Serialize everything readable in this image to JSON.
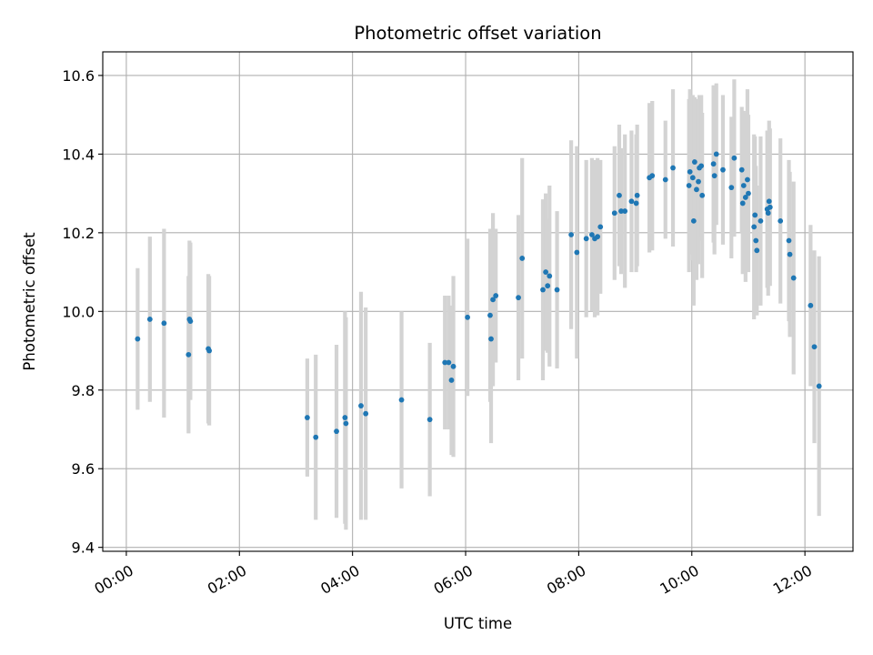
{
  "chart_data": {
    "type": "scatter",
    "title": "Photometric offset variation",
    "xlabel": "UTC time",
    "ylabel": "Photometric offset",
    "x_format": "HH:MM",
    "xlim": [
      "-00:25",
      "12:51"
    ],
    "ylim": [
      9.39,
      10.66
    ],
    "x_ticks": [
      "00:00",
      "02:00",
      "04:00",
      "06:00",
      "08:00",
      "10:00",
      "12:00"
    ],
    "y_ticks": [
      9.4,
      9.6,
      9.8,
      10.0,
      10.2,
      10.4,
      10.6
    ],
    "y_tick_labels": [
      "9.4",
      "9.6",
      "9.8",
      "10.0",
      "10.2",
      "10.4",
      "10.6"
    ],
    "grid": true,
    "legend": "none",
    "colors": {
      "marker": "#1f77b4",
      "error_bar": "#d3d3d3",
      "grid": "#b0b0b0"
    },
    "series": [
      {
        "marker": "dot",
        "points": [
          {
            "x": "00:12",
            "y": 9.93,
            "yerr": 0.18
          },
          {
            "x": "00:25",
            "y": 9.98,
            "yerr": 0.21
          },
          {
            "x": "00:40",
            "y": 9.97,
            "yerr": 0.24
          },
          {
            "x": "01:06",
            "y": 9.89,
            "yerr": 0.2
          },
          {
            "x": "01:07",
            "y": 9.98,
            "yerr": 0.2
          },
          {
            "x": "01:08",
            "y": 9.975,
            "yerr": 0.2
          },
          {
            "x": "01:27",
            "y": 9.905,
            "yerr": 0.19
          },
          {
            "x": "01:28",
            "y": 9.9,
            "yerr": 0.19
          },
          {
            "x": "03:12",
            "y": 9.73,
            "yerr": 0.15
          },
          {
            "x": "03:21",
            "y": 9.68,
            "yerr": 0.21
          },
          {
            "x": "03:43",
            "y": 9.695,
            "yerr": 0.22
          },
          {
            "x": "03:52",
            "y": 9.73,
            "yerr": 0.27
          },
          {
            "x": "03:53",
            "y": 9.715,
            "yerr": 0.27
          },
          {
            "x": "04:09",
            "y": 9.76,
            "yerr": 0.29
          },
          {
            "x": "04:14",
            "y": 9.74,
            "yerr": 0.27
          },
          {
            "x": "04:52",
            "y": 9.775,
            "yerr": 0.225
          },
          {
            "x": "05:22",
            "y": 9.725,
            "yerr": 0.195
          },
          {
            "x": "05:38",
            "y": 9.87,
            "yerr": 0.17
          },
          {
            "x": "05:42",
            "y": 9.87,
            "yerr": 0.17
          },
          {
            "x": "05:45",
            "y": 9.825,
            "yerr": 0.19
          },
          {
            "x": "05:47",
            "y": 9.86,
            "yerr": 0.23
          },
          {
            "x": "06:02",
            "y": 9.985,
            "yerr": 0.2
          },
          {
            "x": "06:26",
            "y": 9.99,
            "yerr": 0.22
          },
          {
            "x": "06:27",
            "y": 9.93,
            "yerr": 0.265
          },
          {
            "x": "06:29",
            "y": 10.03,
            "yerr": 0.22
          },
          {
            "x": "06:32",
            "y": 10.04,
            "yerr": 0.17
          },
          {
            "x": "06:56",
            "y": 10.035,
            "yerr": 0.21
          },
          {
            "x": "07:00",
            "y": 10.135,
            "yerr": 0.255
          },
          {
            "x": "07:22",
            "y": 10.055,
            "yerr": 0.23
          },
          {
            "x": "07:25",
            "y": 10.1,
            "yerr": 0.2
          },
          {
            "x": "07:27",
            "y": 10.065,
            "yerr": 0.17
          },
          {
            "x": "07:29",
            "y": 10.09,
            "yerr": 0.23
          },
          {
            "x": "07:37",
            "y": 10.055,
            "yerr": 0.2
          },
          {
            "x": "07:52",
            "y": 10.195,
            "yerr": 0.24
          },
          {
            "x": "07:58",
            "y": 10.15,
            "yerr": 0.27
          },
          {
            "x": "08:08",
            "y": 10.185,
            "yerr": 0.2
          },
          {
            "x": "08:14",
            "y": 10.195,
            "yerr": 0.195
          },
          {
            "x": "08:17",
            "y": 10.185,
            "yerr": 0.2
          },
          {
            "x": "08:20",
            "y": 10.19,
            "yerr": 0.2
          },
          {
            "x": "08:23",
            "y": 10.215,
            "yerr": 0.17
          },
          {
            "x": "08:38",
            "y": 10.25,
            "yerr": 0.17
          },
          {
            "x": "08:43",
            "y": 10.295,
            "yerr": 0.18
          },
          {
            "x": "08:45",
            "y": 10.255,
            "yerr": 0.16
          },
          {
            "x": "08:49",
            "y": 10.255,
            "yerr": 0.195
          },
          {
            "x": "08:56",
            "y": 10.28,
            "yerr": 0.18
          },
          {
            "x": "09:01",
            "y": 10.275,
            "yerr": 0.175
          },
          {
            "x": "09:02",
            "y": 10.295,
            "yerr": 0.18
          },
          {
            "x": "09:15",
            "y": 10.34,
            "yerr": 0.19
          },
          {
            "x": "09:18",
            "y": 10.345,
            "yerr": 0.19
          },
          {
            "x": "09:32",
            "y": 10.335,
            "yerr": 0.15
          },
          {
            "x": "09:40",
            "y": 10.365,
            "yerr": 0.2
          },
          {
            "x": "09:57",
            "y": 10.32,
            "yerr": 0.22
          },
          {
            "x": "09:58",
            "y": 10.355,
            "yerr": 0.21
          },
          {
            "x": "10:01",
            "y": 10.34,
            "yerr": 0.21
          },
          {
            "x": "10:02",
            "y": 10.23,
            "yerr": 0.215
          },
          {
            "x": "10:03",
            "y": 10.38,
            "yerr": 0.165
          },
          {
            "x": "10:05",
            "y": 10.31,
            "yerr": 0.23
          },
          {
            "x": "10:07",
            "y": 10.33,
            "yerr": 0.21
          },
          {
            "x": "10:08",
            "y": 10.365,
            "yerr": 0.185
          },
          {
            "x": "10:10",
            "y": 10.37,
            "yerr": 0.18
          },
          {
            "x": "10:11",
            "y": 10.295,
            "yerr": 0.21
          },
          {
            "x": "10:23",
            "y": 10.375,
            "yerr": 0.2
          },
          {
            "x": "10:24",
            "y": 10.345,
            "yerr": 0.2
          },
          {
            "x": "10:26",
            "y": 10.4,
            "yerr": 0.18
          },
          {
            "x": "10:33",
            "y": 10.36,
            "yerr": 0.19
          },
          {
            "x": "10:42",
            "y": 10.315,
            "yerr": 0.18
          },
          {
            "x": "10:45",
            "y": 10.39,
            "yerr": 0.2
          },
          {
            "x": "10:53",
            "y": 10.36,
            "yerr": 0.16
          },
          {
            "x": "10:54",
            "y": 10.275,
            "yerr": 0.18
          },
          {
            "x": "10:55",
            "y": 10.32,
            "yerr": 0.19
          },
          {
            "x": "10:57",
            "y": 10.29,
            "yerr": 0.215
          },
          {
            "x": "10:59",
            "y": 10.335,
            "yerr": 0.23
          },
          {
            "x": "11:00",
            "y": 10.3,
            "yerr": 0.2
          },
          {
            "x": "11:06",
            "y": 10.215,
            "yerr": 0.235
          },
          {
            "x": "11:07",
            "y": 10.245,
            "yerr": 0.2
          },
          {
            "x": "11:08",
            "y": 10.18,
            "yerr": 0.19
          },
          {
            "x": "11:09",
            "y": 10.155,
            "yerr": 0.165
          },
          {
            "x": "11:13",
            "y": 10.23,
            "yerr": 0.215
          },
          {
            "x": "11:20",
            "y": 10.26,
            "yerr": 0.2
          },
          {
            "x": "11:21",
            "y": 10.25,
            "yerr": 0.21
          },
          {
            "x": "11:22",
            "y": 10.28,
            "yerr": 0.205
          },
          {
            "x": "11:23",
            "y": 10.265,
            "yerr": 0.2
          },
          {
            "x": "11:34",
            "y": 10.23,
            "yerr": 0.21
          },
          {
            "x": "11:43",
            "y": 10.18,
            "yerr": 0.205
          },
          {
            "x": "11:44",
            "y": 10.145,
            "yerr": 0.21
          },
          {
            "x": "11:48",
            "y": 10.085,
            "yerr": 0.245
          },
          {
            "x": "12:06",
            "y": 10.015,
            "yerr": 0.205
          },
          {
            "x": "12:10",
            "y": 9.91,
            "yerr": 0.245
          },
          {
            "x": "12:15",
            "y": 9.81,
            "yerr": 0.33
          }
        ]
      }
    ]
  }
}
